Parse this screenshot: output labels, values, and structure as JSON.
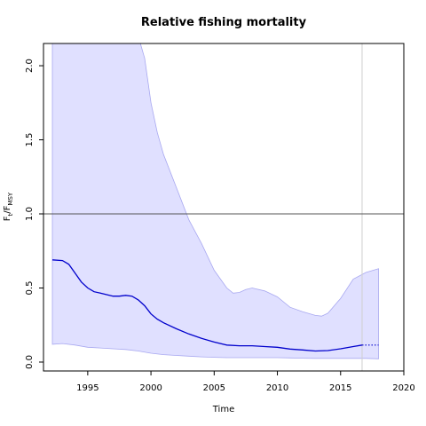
{
  "chart_data": {
    "type": "line",
    "title": "Relative fishing mortality",
    "xlabel": "Time",
    "ylabel_main": "F",
    "ylabel_sub_t": "t",
    "ylabel_slash": "/F",
    "ylabel_sub_msy": "MSY",
    "xlim": [
      1991.5,
      2020
    ],
    "ylim": [
      -0.06,
      2.15
    ],
    "x_ticks": [
      1995,
      2000,
      2005,
      2010,
      2015,
      2020
    ],
    "y_ticks": [
      0.0,
      0.5,
      1.0,
      1.5,
      2.0
    ],
    "x_tick_labels": [
      "1995",
      "2000",
      "2005",
      "2010",
      "2015",
      "2020"
    ],
    "y_tick_labels": [
      "0.0",
      "0.5",
      "1.0",
      "1.5",
      "2.0"
    ],
    "reference_line_y": 1.0,
    "reference_vline_x": 2016.7,
    "grid": false,
    "colors": {
      "estimate": "#0000cc",
      "band_fill": "#e0e0ff",
      "band_stroke": "#a8a8f0",
      "reference": "#555555",
      "vline": "#cfcfcf"
    },
    "series": [
      {
        "values_x": [
          1992.2,
          1993.0,
          1993.5,
          1994.0,
          1994.5,
          1995.0,
          1995.5,
          1996.0,
          1996.5,
          1997.0,
          1997.5,
          1998.0,
          1998.5,
          1999.0,
          1999.5,
          2000.0,
          2000.5,
          2001.0,
          2002.0,
          2003.0,
          2004.0,
          2005.0,
          2006.0,
          2007.0,
          2008.0,
          2009.0,
          2010.0,
          2011.0,
          2012.0,
          2013.0,
          2014.0,
          2015.0,
          2016.0,
          2016.7
        ],
        "values_y": [
          0.69,
          0.685,
          0.66,
          0.6,
          0.54,
          0.5,
          0.475,
          0.465,
          0.455,
          0.445,
          0.445,
          0.45,
          0.445,
          0.42,
          0.38,
          0.325,
          0.29,
          0.265,
          0.225,
          0.19,
          0.16,
          0.135,
          0.115,
          0.11,
          0.11,
          0.105,
          0.1,
          0.088,
          0.082,
          0.075,
          0.078,
          0.09,
          0.105,
          0.115
        ]
      },
      {
        "values_x": [
          2016.7,
          2018.0
        ],
        "values_y": [
          0.115,
          0.115
        ]
      },
      {
        "values_x": [
          1992.2,
          1993.0,
          1994.0,
          1995.0,
          1996.0,
          1997.0,
          1998.0,
          1999.0,
          2000.0,
          2001.0,
          2002.0,
          2003.0,
          2004.0,
          2005.0,
          2006.0,
          2007.0,
          2008.0,
          2009.0,
          2010.0,
          2011.0,
          2012.0,
          2013.0,
          2014.0,
          2015.0,
          2016.0,
          2017.0,
          2018.0
        ],
        "values_y": [
          0.12,
          0.125,
          0.115,
          0.1,
          0.095,
          0.09,
          0.085,
          0.075,
          0.06,
          0.05,
          0.045,
          0.04,
          0.035,
          0.032,
          0.03,
          0.03,
          0.03,
          0.03,
          0.03,
          0.028,
          0.026,
          0.025,
          0.025,
          0.025,
          0.025,
          0.025,
          0.022
        ]
      },
      {
        "values_x": [
          1992.2,
          1993.0,
          1995.0,
          1997.0,
          1999.0,
          1999.5,
          2000.0,
          2000.5,
          2001.0,
          2002.0,
          2003.0,
          2004.0,
          2005.0,
          2006.0,
          2006.5,
          2007.0,
          2007.5,
          2008.0,
          2009.0,
          2010.0,
          2011.0,
          2012.0,
          2013.0,
          2013.5,
          2014.0,
          2015.0,
          2016.0,
          2017.0,
          2018.0
        ],
        "values_y": [
          2.2,
          2.2,
          2.2,
          2.2,
          2.2,
          2.05,
          1.75,
          1.55,
          1.4,
          1.18,
          0.96,
          0.8,
          0.62,
          0.5,
          0.465,
          0.47,
          0.49,
          0.5,
          0.48,
          0.44,
          0.37,
          0.34,
          0.315,
          0.31,
          0.33,
          0.43,
          0.56,
          0.605,
          0.63
        ]
      }
    ]
  }
}
